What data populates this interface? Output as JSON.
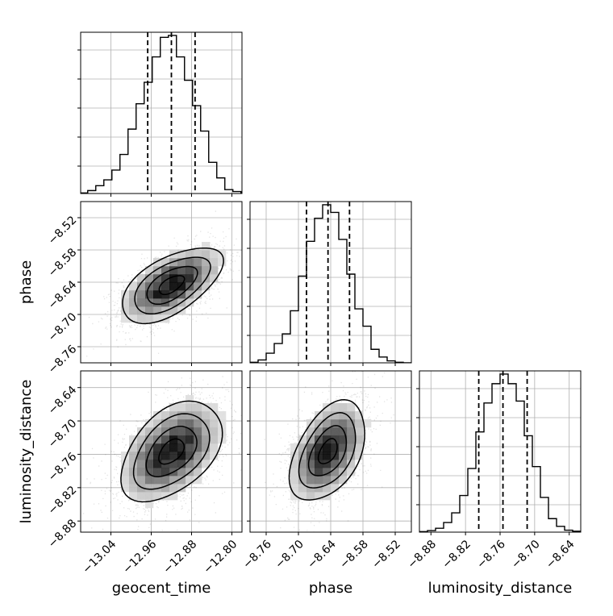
{
  "figure": {
    "type": "corner-plot",
    "parameters": [
      "geocent_time",
      "phase",
      "luminosity_distance"
    ],
    "grid": true
  },
  "chart_data": [
    {
      "type": "histogram",
      "name": "hist-geocent_time",
      "param": "geocent_time",
      "xlim": [
        -13.1,
        -12.78
      ],
      "bin_centers": [
        -13.094,
        -13.078,
        -13.062,
        -13.046,
        -13.03,
        -13.014,
        -12.998,
        -12.982,
        -12.966,
        -12.95,
        -12.934,
        -12.918,
        -12.902,
        -12.886,
        -12.87,
        -12.854,
        -12.838,
        -12.822,
        -12.806,
        -12.79
      ],
      "counts": [
        0.3,
        1.5,
        4,
        7,
        12,
        20,
        33,
        46,
        57,
        70,
        80,
        81,
        70,
        58,
        45,
        32,
        16,
        8,
        2,
        1
      ],
      "quantiles": [
        -12.967,
        -12.92,
        -12.873
      ],
      "xticks": [],
      "show_ylabels": false
    },
    {
      "type": "2d-density",
      "name": "density-geocent_time-phase",
      "x": "geocent_time",
      "y": "phase",
      "xlim": [
        -13.1,
        -12.78
      ],
      "ylim": [
        -8.79,
        -8.49
      ],
      "mean": [
        -12.92,
        -8.645
      ],
      "std": [
        0.05,
        0.035
      ],
      "corr": 0.58,
      "ylabel": "phase",
      "yticks": [
        "−8.52",
        "−8.58",
        "−8.64",
        "−8.70",
        "−8.76"
      ],
      "ytick_values": [
        -8.52,
        -8.58,
        -8.64,
        -8.7,
        -8.76
      ]
    },
    {
      "type": "histogram",
      "name": "hist-phase",
      "param": "phase",
      "xlim": [
        -8.79,
        -8.49
      ],
      "bin_centers": [
        -8.7825,
        -8.7675,
        -8.7525,
        -8.7375,
        -8.7225,
        -8.7075,
        -8.6925,
        -8.6775,
        -8.6625,
        -8.6475,
        -8.6325,
        -8.6175,
        -8.6025,
        -8.5875,
        -8.5725,
        -8.5575,
        -8.5425,
        -8.5275,
        -8.5125,
        -8.4975
      ],
      "counts": [
        0.3,
        1.5,
        5,
        10,
        15,
        27,
        45,
        63,
        75,
        82,
        78,
        64,
        46,
        28,
        19,
        7,
        3,
        1,
        0.3,
        0
      ],
      "quantiles": [
        -8.685,
        -8.645,
        -8.605
      ],
      "xticks": [],
      "show_ylabels": false
    },
    {
      "type": "2d-density",
      "name": "density-geocent_time-luminosity_distance",
      "x": "geocent_time",
      "y": "luminosity_distance",
      "xlim": [
        -13.1,
        -12.78
      ],
      "ylim": [
        -8.9,
        -8.61
      ],
      "mean": [
        -12.92,
        -8.755
      ],
      "std": [
        0.05,
        0.045
      ],
      "corr": 0.45,
      "ylabel": "luminosity_distance",
      "yticks": [
        "−8.64",
        "−8.70",
        "−8.76",
        "−8.82",
        "−8.88"
      ],
      "ytick_values": [
        -8.64,
        -8.7,
        -8.76,
        -8.82,
        -8.88
      ],
      "xlabel": "geocent_time",
      "xticks": [
        "−13.04",
        "−12.96",
        "−12.88",
        "−12.80"
      ],
      "xtick_values": [
        -13.04,
        -12.96,
        -12.88,
        -12.8
      ]
    },
    {
      "type": "2d-density",
      "name": "density-phase-luminosity_distance",
      "x": "phase",
      "y": "luminosity_distance",
      "xlim": [
        -8.79,
        -8.49
      ],
      "ylim": [
        -8.9,
        -8.61
      ],
      "mean": [
        -8.645,
        -8.755
      ],
      "std": [
        0.035,
        0.045
      ],
      "corr": 0.45,
      "xlabel": "phase",
      "xticks": [
        "−8.76",
        "−8.70",
        "−8.64",
        "−8.58",
        "−8.52"
      ],
      "xtick_values": [
        -8.76,
        -8.7,
        -8.64,
        -8.58,
        -8.52
      ]
    },
    {
      "type": "histogram",
      "name": "hist-luminosity_distance",
      "param": "luminosity_distance",
      "xlim": [
        -8.9,
        -8.62
      ],
      "bin_centers": [
        -8.893,
        -8.879,
        -8.865,
        -8.851,
        -8.837,
        -8.823,
        -8.809,
        -8.795,
        -8.781,
        -8.767,
        -8.753,
        -8.739,
        -8.725,
        -8.711,
        -8.697,
        -8.683,
        -8.669,
        -8.655,
        -8.641,
        -8.627
      ],
      "counts": [
        0.3,
        0.8,
        2,
        5,
        10,
        19,
        33,
        52,
        67,
        77,
        82,
        77,
        68,
        50,
        34,
        18,
        7,
        3,
        1,
        0.5
      ],
      "quantiles": [
        -8.797,
        -8.755,
        -8.713
      ],
      "xlabel": "luminosity_distance",
      "xticks": [
        "−8.88",
        "−8.82",
        "−8.76",
        "−8.70",
        "−8.64"
      ],
      "xtick_values": [
        -8.88,
        -8.82,
        -8.76,
        -8.7,
        -8.64
      ],
      "show_ylabels": false
    }
  ]
}
